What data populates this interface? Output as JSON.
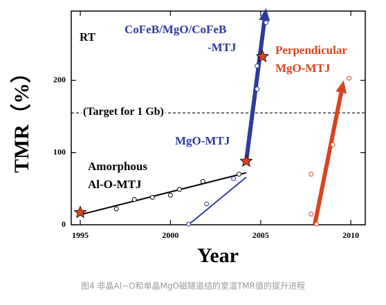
{
  "chart_data": {
    "type": "scatter",
    "x_label": "Year",
    "y_label": "TMR（%）",
    "xlim": [
      1994.5,
      2010.8
    ],
    "ylim": [
      0,
      296
    ],
    "xticks": [
      1995,
      2000,
      2005,
      2010
    ],
    "yticks": [
      0,
      100,
      200
    ],
    "reference_line": {
      "value": 155,
      "label": "(Target for 1 Gb)"
    },
    "series": [
      {
        "marker": "circle",
        "color": "#000000",
        "x": [
          1997,
          1998,
          1999,
          2000,
          2000.5,
          2001.8,
          2003.8
        ],
        "values": [
          22,
          35,
          38,
          41,
          49,
          60,
          70
        ]
      },
      {
        "marker": "circle",
        "color": "#2f3a9e",
        "x": [
          2001,
          2002,
          2003.5,
          2004.8,
          2004.8,
          2005.3
        ],
        "values": [
          1,
          29,
          64,
          188,
          220,
          280
        ]
      },
      {
        "marker": "circle",
        "color": "#d9431f",
        "x": [
          2007.8,
          2007.8,
          2008.1,
          2009,
          2009.9
        ],
        "values": [
          70,
          15,
          1,
          111,
          203
        ]
      },
      {
        "marker": "star",
        "color": "#d9431f",
        "x": [
          1995,
          2004.2,
          2005.1
        ],
        "values": [
          17,
          88,
          233
        ]
      }
    ],
    "lines": [
      {
        "color": "#000000",
        "x": [
          1995,
          2004.2
        ],
        "values": [
          14,
          72
        ]
      },
      {
        "color": "#2f3a9e",
        "x": [
          2001,
          2004.2
        ],
        "values": [
          0,
          66
        ]
      }
    ],
    "arrows": [
      {
        "color": "#2f3a9e",
        "x": [
          2004.2,
          2005.3
        ],
        "values": [
          88,
          300
        ]
      },
      {
        "color": "#d9431f",
        "x": [
          2008.0,
          2009.6
        ],
        "values": [
          0,
          200
        ]
      }
    ],
    "annotations": [
      {
        "text": "RT",
        "color": "#000000"
      },
      {
        "text": "CoFeB/MgO/CoFeB",
        "color": "#2f3a9e"
      },
      {
        "text": "-MTJ",
        "color": "#2f3a9e"
      },
      {
        "text": "Perpendicular",
        "color": "#d9431f"
      },
      {
        "text": "MgO-MTJ",
        "color": "#d9431f"
      },
      {
        "text": "MgO-MTJ",
        "color": "#2f3a9e"
      },
      {
        "text": "Amorphous",
        "color": "#000000"
      },
      {
        "text": "Al-O-MTJ",
        "color": "#000000"
      }
    ]
  },
  "caption": "图4 非晶Al−O和单晶MgO磁隧道结的室温TMR值的提升进程"
}
